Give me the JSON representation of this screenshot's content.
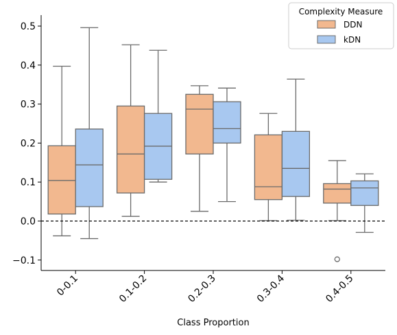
{
  "chart_data": {
    "type": "box",
    "xlabel": "Class Proportion",
    "ylabel": "",
    "categories": [
      "0-0.1",
      "0.1-0.2",
      "0.2-0.3",
      "0.3-0.4",
      "0.4-0.5"
    ],
    "yticks": [
      "0.5",
      "0.4",
      "0.3",
      "0.2",
      "0.1",
      "0.0",
      "−0.1"
    ],
    "ytick_values": [
      0.5,
      0.4,
      0.3,
      0.2,
      0.1,
      0.0,
      -0.1
    ],
    "ylim": [
      -0.13,
      0.525
    ],
    "reference_line": 0.0,
    "legend": {
      "title": "Complexity Measure",
      "placement": "top-right"
    },
    "series": [
      {
        "name": "DDN",
        "color": "#f2b88f",
        "boxes": [
          {
            "whislo": -0.038,
            "q1": 0.018,
            "med": 0.104,
            "q3": 0.193,
            "whishi": 0.397,
            "fliers": []
          },
          {
            "whislo": 0.012,
            "q1": 0.072,
            "med": 0.172,
            "q3": 0.295,
            "whishi": 0.452,
            "fliers": []
          },
          {
            "whislo": 0.025,
            "q1": 0.172,
            "med": 0.287,
            "q3": 0.325,
            "whishi": 0.347,
            "fliers": []
          },
          {
            "whislo": 0.001,
            "q1": 0.055,
            "med": 0.088,
            "q3": 0.221,
            "whishi": 0.276,
            "fliers": []
          },
          {
            "whislo": 0.001,
            "q1": 0.046,
            "med": 0.082,
            "q3": 0.096,
            "whishi": 0.155,
            "fliers": [
              -0.098
            ]
          }
        ]
      },
      {
        "name": "kDN",
        "color": "#a8c8f0",
        "boxes": [
          {
            "whislo": -0.045,
            "q1": 0.037,
            "med": 0.144,
            "q3": 0.236,
            "whishi": 0.496,
            "fliers": []
          },
          {
            "whislo": 0.1,
            "q1": 0.107,
            "med": 0.192,
            "q3": 0.276,
            "whishi": 0.438,
            "fliers": []
          },
          {
            "whislo": 0.05,
            "q1": 0.2,
            "med": 0.237,
            "q3": 0.306,
            "whishi": 0.341,
            "fliers": []
          },
          {
            "whislo": 0.002,
            "q1": 0.063,
            "med": 0.135,
            "q3": 0.23,
            "whishi": 0.364,
            "fliers": []
          },
          {
            "whislo": -0.029,
            "q1": 0.04,
            "med": 0.085,
            "q3": 0.103,
            "whishi": 0.121,
            "fliers": []
          }
        ]
      }
    ]
  }
}
